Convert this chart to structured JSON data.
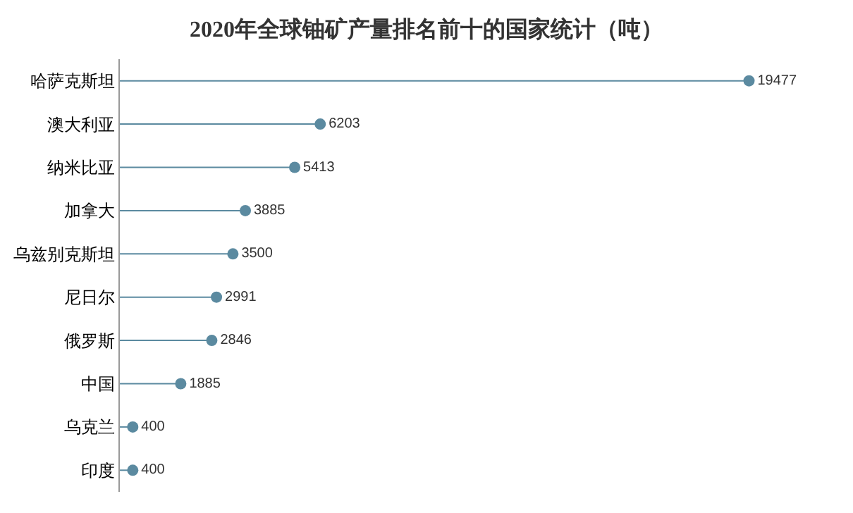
{
  "chart_data": {
    "type": "lollipop",
    "orientation": "horizontal",
    "title": "2020年全球铀矿产量排名前十的国家统计（吨）",
    "categories": [
      "哈萨克斯坦",
      "澳大利亚",
      "纳米比亚",
      "加拿大",
      "乌兹别克斯坦",
      "尼日尔",
      "俄罗斯",
      "中国",
      "乌克兰",
      "印度"
    ],
    "values": [
      19477,
      6203,
      5413,
      3885,
      3500,
      2991,
      2846,
      1885,
      400,
      400
    ],
    "color": "#5b8aa0",
    "data_labels": true
  }
}
